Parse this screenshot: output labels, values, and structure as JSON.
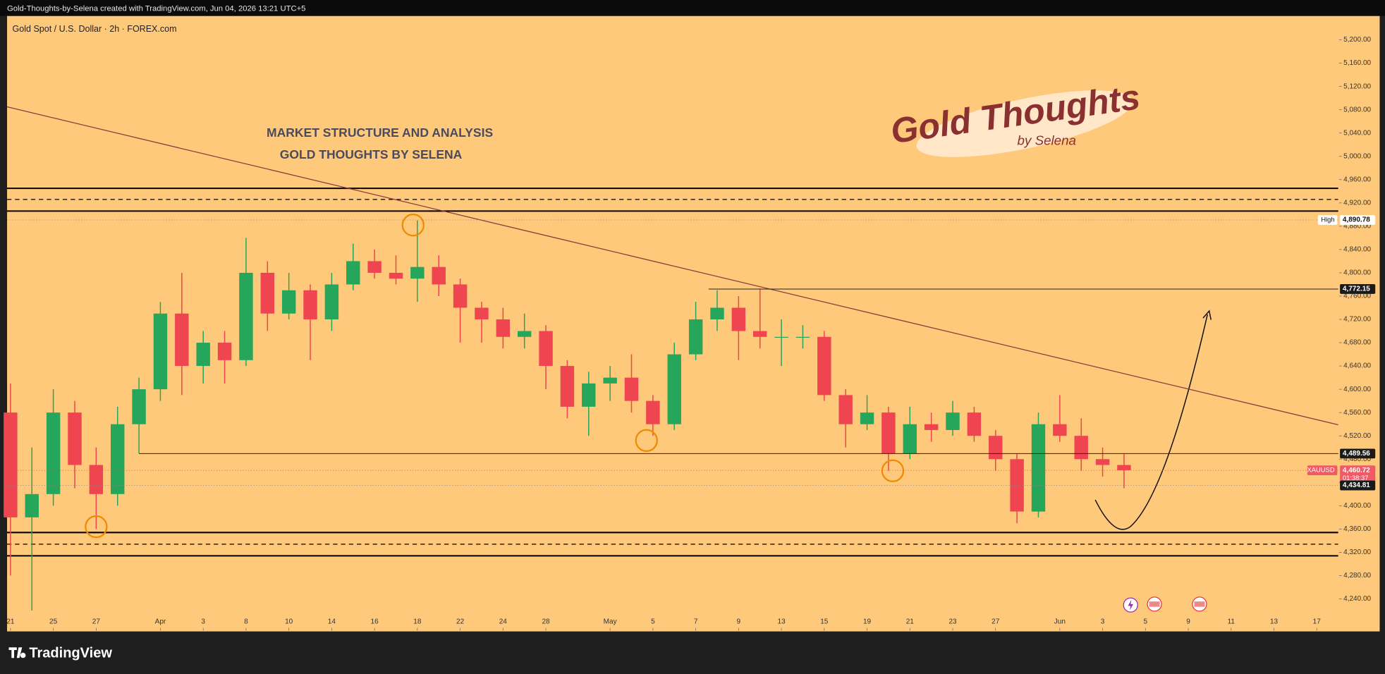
{
  "header": {
    "text": "Gold-Thoughts-by-Selena created with TradingView.com, Jun 04, 2026 13:21 UTC+5"
  },
  "footer": {
    "brand": "TradingView"
  },
  "chart_data": {
    "type": "candlestick",
    "title": "Gold Spot / U.S. Dollar · 2h · FOREX.com",
    "annotations": [
      "MARKET STRUCTURE AND ANALYSIS",
      "GOLD THOUGHTS BY SELENA"
    ],
    "logo": {
      "title": "Gold Thoughts",
      "subtitle": "by Selena"
    },
    "up_color": "#26a65b",
    "down_color": "#ef4550",
    "x": [
      0,
      1,
      2,
      3,
      4,
      5,
      6,
      7,
      8,
      9,
      10,
      11,
      12,
      13,
      14,
      15,
      16,
      17,
      18,
      19,
      20,
      21,
      22,
      23,
      24,
      25,
      26,
      27,
      28,
      29,
      30,
      31,
      32,
      33,
      34,
      35,
      36,
      37,
      38,
      39,
      40,
      41,
      42,
      43,
      44,
      45,
      46,
      47,
      48,
      49,
      50,
      51,
      52
    ],
    "open": [
      4560,
      4380,
      4420,
      4560,
      4470,
      4420,
      4540,
      4600,
      4730,
      4640,
      4680,
      4650,
      4800,
      4730,
      4770,
      4720,
      4780,
      4820,
      4800,
      4790,
      4810,
      4780,
      4740,
      4720,
      4690,
      4700,
      4640,
      4570,
      4610,
      4620,
      4580,
      4540,
      4660,
      4720,
      4740,
      4700,
      4690,
      4690,
      4690,
      4590,
      4540,
      4560,
      4490,
      4540,
      4530,
      4560,
      4520,
      4480,
      4390,
      4540,
      4520,
      4480,
      4470
    ],
    "high": [
      4610,
      4500,
      4600,
      4580,
      4500,
      4570,
      4620,
      4750,
      4800,
      4700,
      4700,
      4860,
      4820,
      4800,
      4780,
      4800,
      4850,
      4840,
      4830,
      4890,
      4830,
      4790,
      4750,
      4740,
      4730,
      4710,
      4650,
      4630,
      4640,
      4660,
      4590,
      4680,
      4750,
      4770,
      4760,
      4772,
      4720,
      4710,
      4700,
      4600,
      4590,
      4570,
      4570,
      4560,
      4580,
      4570,
      4530,
      4490,
      4560,
      4590,
      4550,
      4500,
      4490
    ],
    "low": [
      4280,
      4220,
      4400,
      4430,
      4360,
      4400,
      4490,
      4580,
      4590,
      4610,
      4610,
      4640,
      4700,
      4720,
      4650,
      4700,
      4770,
      4790,
      4780,
      4750,
      4760,
      4680,
      4680,
      4670,
      4670,
      4600,
      4550,
      4520,
      4580,
      4560,
      4520,
      4530,
      4650,
      4700,
      4650,
      4670,
      4640,
      4670,
      4580,
      4500,
      4530,
      4460,
      4480,
      4510,
      4520,
      4510,
      4460,
      4370,
      4380,
      4510,
      4460,
      4450,
      4430
    ],
    "close": [
      4380,
      4420,
      4560,
      4470,
      4420,
      4540,
      4600,
      4730,
      4640,
      4680,
      4650,
      4800,
      4730,
      4770,
      4720,
      4780,
      4820,
      4800,
      4790,
      4810,
      4780,
      4740,
      4720,
      4690,
      4700,
      4640,
      4570,
      4610,
      4620,
      4580,
      4540,
      4660,
      4720,
      4740,
      4700,
      4690,
      4690,
      4690,
      4590,
      4540,
      4560,
      4490,
      4540,
      4530,
      4560,
      4520,
      4480,
      4390,
      4540,
      4520,
      4480,
      4470,
      4461
    ],
    "xlim": [
      -0.16,
      62
    ],
    "xticks": [
      {
        "value": 0,
        "label": "21"
      },
      {
        "value": 2,
        "label": "25"
      },
      {
        "value": 4,
        "label": "27"
      },
      {
        "value": 7,
        "label": "Apr"
      },
      {
        "value": 9,
        "label": "3"
      },
      {
        "value": 11,
        "label": "8"
      },
      {
        "value": 13,
        "label": "10"
      },
      {
        "value": 15,
        "label": "14"
      },
      {
        "value": 17,
        "label": "16"
      },
      {
        "value": 19,
        "label": "18"
      },
      {
        "value": 21,
        "label": "22"
      },
      {
        "value": 23,
        "label": "24"
      },
      {
        "value": 25,
        "label": "28"
      },
      {
        "value": 28,
        "label": "May"
      },
      {
        "value": 30,
        "label": "5"
      },
      {
        "value": 32,
        "label": "7"
      },
      {
        "value": 34,
        "label": "9"
      },
      {
        "value": 36,
        "label": "13"
      },
      {
        "value": 38,
        "label": "15"
      },
      {
        "value": 40,
        "label": "19"
      },
      {
        "value": 42,
        "label": "21"
      },
      {
        "value": 44,
        "label": "23"
      },
      {
        "value": 46,
        "label": "27"
      },
      {
        "value": 49,
        "label": "Jun"
      },
      {
        "value": 51,
        "label": "3"
      },
      {
        "value": 53,
        "label": "5"
      },
      {
        "value": 55,
        "label": "9"
      },
      {
        "value": 57,
        "label": "11"
      },
      {
        "value": 59,
        "label": "13"
      },
      {
        "value": 61,
        "label": "17"
      }
    ],
    "ylim": [
      4184,
      5241
    ],
    "yticks": [
      {
        "value": 4240,
        "label": "4,240.00"
      },
      {
        "value": 4280,
        "label": "4,280.00"
      },
      {
        "value": 4320,
        "label": "4,320.00"
      },
      {
        "value": 4360,
        "label": "4,360.00"
      },
      {
        "value": 4400,
        "label": "4,400.00"
      },
      {
        "value": 4440,
        "label": "4,440.00"
      },
      {
        "value": 4480,
        "label": "4,480.00"
      },
      {
        "value": 4520,
        "label": "4,520.00"
      },
      {
        "value": 4560,
        "label": "4,560.00"
      },
      {
        "value": 4600,
        "label": "4,600.00"
      },
      {
        "value": 4640,
        "label": "4,640.00"
      },
      {
        "value": 4680,
        "label": "4,680.00"
      },
      {
        "value": 4720,
        "label": "4,720.00"
      },
      {
        "value": 4760,
        "label": "4,760.00"
      },
      {
        "value": 4800,
        "label": "4,800.00"
      },
      {
        "value": 4840,
        "label": "4,840.00"
      },
      {
        "value": 4880,
        "label": "4,880.00"
      },
      {
        "value": 4920,
        "label": "4,920.00"
      },
      {
        "value": 4960,
        "label": "4,960.00"
      },
      {
        "value": 5000,
        "label": "5,000.00"
      },
      {
        "value": 5040,
        "label": "5,040.00"
      },
      {
        "value": 5080,
        "label": "5,080.00"
      },
      {
        "value": 5120,
        "label": "5,120.00"
      },
      {
        "value": 5160,
        "label": "5,160.00"
      },
      {
        "value": 5200,
        "label": "5,200.00"
      }
    ],
    "levels": [
      {
        "value": 4945,
        "style": "solid"
      },
      {
        "value": 4926,
        "style": "dashed"
      },
      {
        "value": 4906,
        "style": "solid"
      },
      {
        "value": 4354,
        "style": "solid"
      },
      {
        "value": 4334,
        "style": "dashed"
      },
      {
        "value": 4314,
        "style": "solid"
      }
    ],
    "trendline": {
      "x": [
        -0.16,
        62
      ],
      "y": [
        5085,
        4539
      ]
    },
    "highlights": [
      {
        "x": 4,
        "y": 4364
      },
      {
        "x": 18.8,
        "y": 4882
      },
      {
        "x": 29.7,
        "y": 4512
      },
      {
        "x": 41.2,
        "y": 4460
      }
    ],
    "markers": [
      {
        "name": "High",
        "value": 4890.78,
        "label": "4,890.78",
        "style": "dotted"
      },
      {
        "value": 4772.15,
        "label": "4,772.15",
        "style": "ray",
        "from_x": 32.6
      },
      {
        "value": 4489.56,
        "label": "4,489.56",
        "style": "ray",
        "from_x": 6
      },
      {
        "name": "XAUUSD",
        "value": 4460.72,
        "label": "4,460.72",
        "countdown": "01:38:37",
        "style": "dotted"
      },
      {
        "value": 4434.81,
        "label": "4,434.81",
        "style": "dotted"
      }
    ]
  }
}
